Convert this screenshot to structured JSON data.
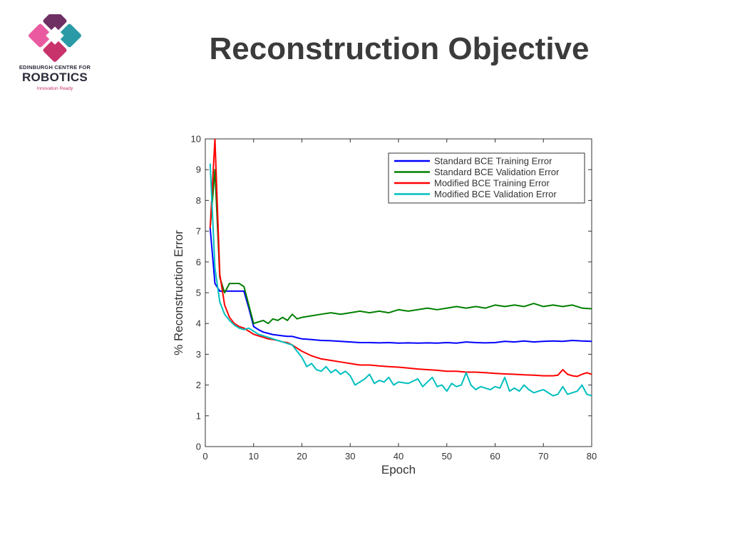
{
  "slide": {
    "title": "Reconstruction Objective"
  },
  "logo": {
    "line1": "EDINBURGH CENTRE FOR",
    "line2": "ROBOTICS",
    "tagline": "Innovation Ready",
    "colors": {
      "magenta": "#c8336c",
      "plum": "#6e2f63",
      "teal": "#2a9aa6",
      "pink": "#ea5aa0"
    }
  },
  "chart_data": {
    "type": "line",
    "xlabel": "Epoch",
    "ylabel": "% Reconstruction Error",
    "xlim": [
      0,
      80
    ],
    "ylim": [
      0,
      10
    ],
    "xticks": [
      0,
      10,
      20,
      30,
      40,
      50,
      60,
      70,
      80
    ],
    "yticks": [
      0,
      1,
      2,
      3,
      4,
      5,
      6,
      7,
      8,
      9,
      10
    ],
    "grid": false,
    "legend": "top-right",
    "series": [
      {
        "name": "Standard BCE Training Error",
        "color": "#0000ff",
        "points": [
          [
            1,
            7.1
          ],
          [
            2,
            5.3
          ],
          [
            3,
            5.05
          ],
          [
            4,
            5.05
          ],
          [
            5,
            5.05
          ],
          [
            6,
            5.05
          ],
          [
            7,
            5.05
          ],
          [
            8,
            5.05
          ],
          [
            9,
            4.5
          ],
          [
            10,
            3.9
          ],
          [
            11,
            3.8
          ],
          [
            12,
            3.72
          ],
          [
            13,
            3.68
          ],
          [
            14,
            3.64
          ],
          [
            15,
            3.62
          ],
          [
            16,
            3.6
          ],
          [
            17,
            3.58
          ],
          [
            18,
            3.58
          ],
          [
            19,
            3.54
          ],
          [
            20,
            3.5
          ],
          [
            22,
            3.48
          ],
          [
            24,
            3.45
          ],
          [
            26,
            3.44
          ],
          [
            28,
            3.42
          ],
          [
            30,
            3.4
          ],
          [
            32,
            3.38
          ],
          [
            34,
            3.38
          ],
          [
            36,
            3.37
          ],
          [
            38,
            3.38
          ],
          [
            40,
            3.36
          ],
          [
            42,
            3.37
          ],
          [
            44,
            3.36
          ],
          [
            46,
            3.37
          ],
          [
            48,
            3.36
          ],
          [
            50,
            3.38
          ],
          [
            52,
            3.36
          ],
          [
            54,
            3.4
          ],
          [
            56,
            3.38
          ],
          [
            58,
            3.37
          ],
          [
            60,
            3.38
          ],
          [
            62,
            3.42
          ],
          [
            64,
            3.4
          ],
          [
            66,
            3.43
          ],
          [
            68,
            3.4
          ],
          [
            70,
            3.42
          ],
          [
            72,
            3.43
          ],
          [
            74,
            3.42
          ],
          [
            76,
            3.45
          ],
          [
            78,
            3.43
          ],
          [
            80,
            3.42
          ]
        ]
      },
      {
        "name": "Standard BCE Validation Error",
        "color": "#008000",
        "points": [
          [
            1,
            7.1
          ],
          [
            2,
            9.0
          ],
          [
            3,
            5.5
          ],
          [
            4,
            5.0
          ],
          [
            5,
            5.3
          ],
          [
            6,
            5.3
          ],
          [
            7,
            5.3
          ],
          [
            8,
            5.2
          ],
          [
            9,
            4.6
          ],
          [
            10,
            4.0
          ],
          [
            11,
            4.05
          ],
          [
            12,
            4.1
          ],
          [
            13,
            4.0
          ],
          [
            14,
            4.15
          ],
          [
            15,
            4.1
          ],
          [
            16,
            4.2
          ],
          [
            17,
            4.1
          ],
          [
            18,
            4.3
          ],
          [
            19,
            4.15
          ],
          [
            20,
            4.2
          ],
          [
            22,
            4.25
          ],
          [
            24,
            4.3
          ],
          [
            26,
            4.35
          ],
          [
            28,
            4.3
          ],
          [
            30,
            4.35
          ],
          [
            32,
            4.4
          ],
          [
            34,
            4.35
          ],
          [
            36,
            4.4
          ],
          [
            38,
            4.35
          ],
          [
            40,
            4.45
          ],
          [
            42,
            4.4
          ],
          [
            44,
            4.45
          ],
          [
            46,
            4.5
          ],
          [
            48,
            4.45
          ],
          [
            50,
            4.5
          ],
          [
            52,
            4.55
          ],
          [
            54,
            4.5
          ],
          [
            56,
            4.55
          ],
          [
            58,
            4.5
          ],
          [
            60,
            4.6
          ],
          [
            62,
            4.55
          ],
          [
            64,
            4.6
          ],
          [
            66,
            4.55
          ],
          [
            68,
            4.65
          ],
          [
            70,
            4.55
          ],
          [
            72,
            4.6
          ],
          [
            74,
            4.55
          ],
          [
            76,
            4.6
          ],
          [
            78,
            4.5
          ],
          [
            80,
            4.48
          ]
        ]
      },
      {
        "name": "Modified BCE Training Error",
        "color": "#ff0000",
        "points": [
          [
            1,
            7.1
          ],
          [
            2,
            10
          ],
          [
            3,
            5.6
          ],
          [
            4,
            4.6
          ],
          [
            5,
            4.2
          ],
          [
            6,
            4.0
          ],
          [
            7,
            3.9
          ],
          [
            8,
            3.85
          ],
          [
            9,
            3.75
          ],
          [
            10,
            3.65
          ],
          [
            11,
            3.6
          ],
          [
            12,
            3.55
          ],
          [
            13,
            3.5
          ],
          [
            14,
            3.48
          ],
          [
            15,
            3.45
          ],
          [
            16,
            3.4
          ],
          [
            17,
            3.38
          ],
          [
            18,
            3.3
          ],
          [
            19,
            3.2
          ],
          [
            20,
            3.1
          ],
          [
            22,
            2.95
          ],
          [
            24,
            2.85
          ],
          [
            26,
            2.8
          ],
          [
            28,
            2.75
          ],
          [
            30,
            2.7
          ],
          [
            32,
            2.65
          ],
          [
            34,
            2.65
          ],
          [
            36,
            2.62
          ],
          [
            38,
            2.6
          ],
          [
            40,
            2.58
          ],
          [
            42,
            2.55
          ],
          [
            44,
            2.52
          ],
          [
            46,
            2.5
          ],
          [
            48,
            2.48
          ],
          [
            50,
            2.45
          ],
          [
            52,
            2.45
          ],
          [
            54,
            2.42
          ],
          [
            56,
            2.42
          ],
          [
            58,
            2.4
          ],
          [
            60,
            2.38
          ],
          [
            62,
            2.36
          ],
          [
            64,
            2.35
          ],
          [
            66,
            2.33
          ],
          [
            68,
            2.32
          ],
          [
            70,
            2.3
          ],
          [
            72,
            2.3
          ],
          [
            73,
            2.32
          ],
          [
            74,
            2.5
          ],
          [
            75,
            2.35
          ],
          [
            76,
            2.3
          ],
          [
            77,
            2.28
          ],
          [
            78,
            2.35
          ],
          [
            79,
            2.4
          ],
          [
            80,
            2.35
          ]
        ]
      },
      {
        "name": "Modified BCE Validation Error",
        "color": "#00bfbf",
        "points": [
          [
            1,
            9.2
          ],
          [
            2,
            5.8
          ],
          [
            3,
            4.7
          ],
          [
            4,
            4.3
          ],
          [
            5,
            4.1
          ],
          [
            6,
            3.95
          ],
          [
            7,
            3.85
          ],
          [
            8,
            3.8
          ],
          [
            9,
            3.85
          ],
          [
            10,
            3.75
          ],
          [
            11,
            3.65
          ],
          [
            12,
            3.6
          ],
          [
            13,
            3.55
          ],
          [
            14,
            3.5
          ],
          [
            15,
            3.45
          ],
          [
            16,
            3.4
          ],
          [
            17,
            3.35
          ],
          [
            18,
            3.3
          ],
          [
            19,
            3.1
          ],
          [
            20,
            2.9
          ],
          [
            21,
            2.6
          ],
          [
            22,
            2.7
          ],
          [
            23,
            2.5
          ],
          [
            24,
            2.45
          ],
          [
            25,
            2.6
          ],
          [
            26,
            2.4
          ],
          [
            27,
            2.5
          ],
          [
            28,
            2.35
          ],
          [
            29,
            2.45
          ],
          [
            30,
            2.3
          ],
          [
            31,
            2.0
          ],
          [
            32,
            2.1
          ],
          [
            33,
            2.2
          ],
          [
            34,
            2.35
          ],
          [
            35,
            2.05
          ],
          [
            36,
            2.15
          ],
          [
            37,
            2.1
          ],
          [
            38,
            2.25
          ],
          [
            39,
            2.0
          ],
          [
            40,
            2.1
          ],
          [
            42,
            2.05
          ],
          [
            44,
            2.2
          ],
          [
            45,
            1.95
          ],
          [
            46,
            2.1
          ],
          [
            47,
            2.25
          ],
          [
            48,
            1.95
          ],
          [
            49,
            2.0
          ],
          [
            50,
            1.8
          ],
          [
            51,
            2.05
          ],
          [
            52,
            1.95
          ],
          [
            53,
            2.0
          ],
          [
            54,
            2.4
          ],
          [
            55,
            2.0
          ],
          [
            56,
            1.85
          ],
          [
            57,
            1.95
          ],
          [
            58,
            1.9
          ],
          [
            59,
            1.85
          ],
          [
            60,
            1.95
          ],
          [
            61,
            1.9
          ],
          [
            62,
            2.25
          ],
          [
            63,
            1.8
          ],
          [
            64,
            1.9
          ],
          [
            65,
            1.8
          ],
          [
            66,
            2.0
          ],
          [
            67,
            1.85
          ],
          [
            68,
            1.75
          ],
          [
            69,
            1.8
          ],
          [
            70,
            1.85
          ],
          [
            71,
            1.75
          ],
          [
            72,
            1.65
          ],
          [
            73,
            1.7
          ],
          [
            74,
            1.95
          ],
          [
            75,
            1.7
          ],
          [
            76,
            1.75
          ],
          [
            77,
            1.8
          ],
          [
            78,
            2.0
          ],
          [
            79,
            1.7
          ],
          [
            80,
            1.65
          ]
        ]
      }
    ]
  }
}
